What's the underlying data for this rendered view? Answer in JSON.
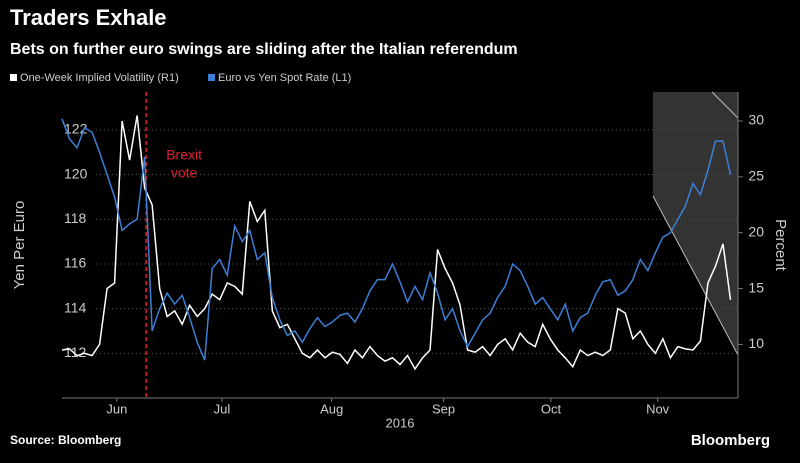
{
  "chart_data": {
    "type": "line",
    "title": "Traders Exhale",
    "subtitle": "Bets on further euro swings are sliding after the Italian referendum",
    "ylabel": "Yen Per Euro",
    "y2label": "Percent",
    "xlabel": "2016",
    "source": "Source: Bloomberg",
    "brand": "Bloomberg",
    "event": {
      "x": 11.2,
      "label": [
        "Brexit",
        "vote"
      ],
      "color": "#e0212b"
    },
    "categories": [
      null,
      null,
      null,
      null,
      null,
      null,
      null,
      null,
      null,
      null,
      null,
      null,
      null,
      null,
      null,
      null,
      null,
      null,
      null,
      null,
      null,
      null,
      null,
      null,
      null,
      null,
      null,
      null,
      null,
      null,
      null,
      null,
      null,
      null,
      null,
      null,
      null,
      null,
      null,
      null,
      null,
      null,
      null,
      null,
      null,
      null,
      null,
      null,
      null,
      null,
      null,
      null,
      null,
      null,
      null,
      null,
      null,
      null,
      null,
      null,
      null,
      null,
      null,
      null,
      null,
      null,
      null,
      null,
      null,
      null,
      null,
      null,
      null,
      null,
      null,
      null,
      null,
      null,
      null,
      null,
      null,
      null,
      null,
      null,
      null,
      null,
      null,
      null,
      null,
      null
    ],
    "xlim": [
      0,
      90
    ],
    "xticks": [
      {
        "value": 7.3,
        "label": "Jun"
      },
      {
        "value": 21.3,
        "label": "Jul"
      },
      {
        "value": 35.9,
        "label": "Aug"
      },
      {
        "value": 50.8,
        "label": "Sep"
      },
      {
        "value": 65.1,
        "label": "Oct"
      },
      {
        "value": 79.3,
        "label": "Nov"
      }
    ],
    "ylim": [
      110,
      123.7
    ],
    "yticks": [
      112,
      114,
      116,
      118,
      120,
      122
    ],
    "y2lim": [
      5.2,
      32.6
    ],
    "y2ticks": [
      10,
      15,
      20,
      25,
      30
    ],
    "grid": true,
    "series": [
      {
        "name": "One-Week Implied Volatility (R1)",
        "color": "#ffffff",
        "axis": "y2",
        "values": [
          9.5,
          9.6,
          9.0,
          9.2,
          9.0,
          10,
          15,
          15.5,
          30,
          26.5,
          30.5,
          24,
          22.5,
          15,
          12.5,
          13,
          11.8,
          13.5,
          12.5,
          13.2,
          14.5,
          14,
          15.5,
          15.2,
          14.5,
          22.8,
          21,
          22,
          13,
          11.5,
          11.8,
          10.5,
          9.2,
          8.8,
          9.5,
          8.8,
          9.3,
          9.1,
          8.3,
          9.5,
          8.8,
          9.8,
          9,
          8.5,
          8.8,
          8.2,
          9,
          7.8,
          8.8,
          9.5,
          18.5,
          16.8,
          15.5,
          13.5,
          9.5,
          9.3,
          9.8,
          9,
          10,
          10.5,
          9.5,
          11,
          10.2,
          9.8,
          11.8,
          10.5,
          9.5,
          8.8,
          8,
          9.5,
          9.0,
          9.3,
          9,
          9.5,
          13.2,
          12.8,
          10.5,
          11.2,
          10,
          9.2,
          10.5,
          8.8,
          9.8,
          9.6,
          9.5,
          10.3,
          15.5,
          17,
          19,
          14
        ]
      },
      {
        "name": "Euro vs Yen Spot Rate (L1)",
        "color": "#3d7fd6",
        "axis": "y",
        "values": [
          122.5,
          121.6,
          121.2,
          122.1,
          121.9,
          121,
          120,
          119,
          117.5,
          117.8,
          118,
          120.8,
          113,
          114,
          114.7,
          114.2,
          114.6,
          113.6,
          112.5,
          111.7,
          115.8,
          116.2,
          115.5,
          117.7,
          117,
          117.5,
          116.2,
          116.5,
          114.5,
          113.5,
          112.8,
          113,
          112.5,
          113.1,
          113.6,
          113.2,
          113.4,
          113.7,
          113.8,
          113.4,
          114,
          114.8,
          115.3,
          115.3,
          116,
          115.2,
          114.3,
          115,
          114.4,
          115.6,
          114.7,
          113.5,
          114,
          113,
          112.3,
          112.9,
          113.5,
          113.8,
          114.5,
          115,
          116,
          115.7,
          115,
          114.2,
          114.5,
          114,
          113.5,
          114.2,
          113,
          113.6,
          113.8,
          114.6,
          115.2,
          115.3,
          114.6,
          114.8,
          115.3,
          116.2,
          115.7,
          116.5,
          117.2,
          117.4,
          118,
          118.6,
          119.6,
          119.1,
          120.2,
          121.5,
          121.5,
          120
        ]
      }
    ]
  }
}
